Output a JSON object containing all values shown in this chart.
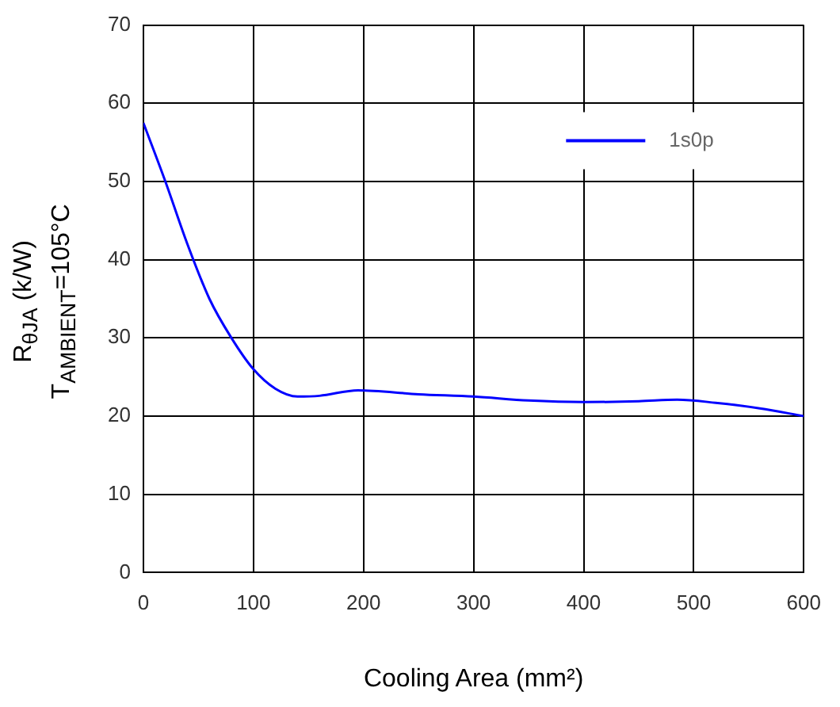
{
  "chart_data": {
    "type": "line",
    "xlabel": "Cooling Area (mm²)",
    "ylabel": "R$_{θJA}$ (k/W)\nT$_{AMBIENT}$=105°C",
    "x": [
      0,
      20,
      40,
      60,
      80,
      100,
      120,
      140,
      160,
      195,
      250,
      300,
      350,
      400,
      450,
      485,
      520,
      560,
      600
    ],
    "series": [
      {
        "name": "1s0p",
        "color": "#0000ff",
        "values": [
          57.5,
          50,
          42,
          35,
          30,
          26,
          23.5,
          22.5,
          22.6,
          23.3,
          22.8,
          22.5,
          22.0,
          21.8,
          21.9,
          22.1,
          21.7,
          21,
          20
        ]
      }
    ],
    "xlim": [
      0,
      600
    ],
    "xticks": [
      0,
      100,
      200,
      300,
      400,
      500,
      600
    ],
    "ylim": [
      0,
      70
    ],
    "yticks": [
      0,
      10,
      20,
      30,
      40,
      50,
      60,
      70
    ],
    "grid": true,
    "legend": "top right",
    "marker": "none",
    "line_style": "solid"
  }
}
